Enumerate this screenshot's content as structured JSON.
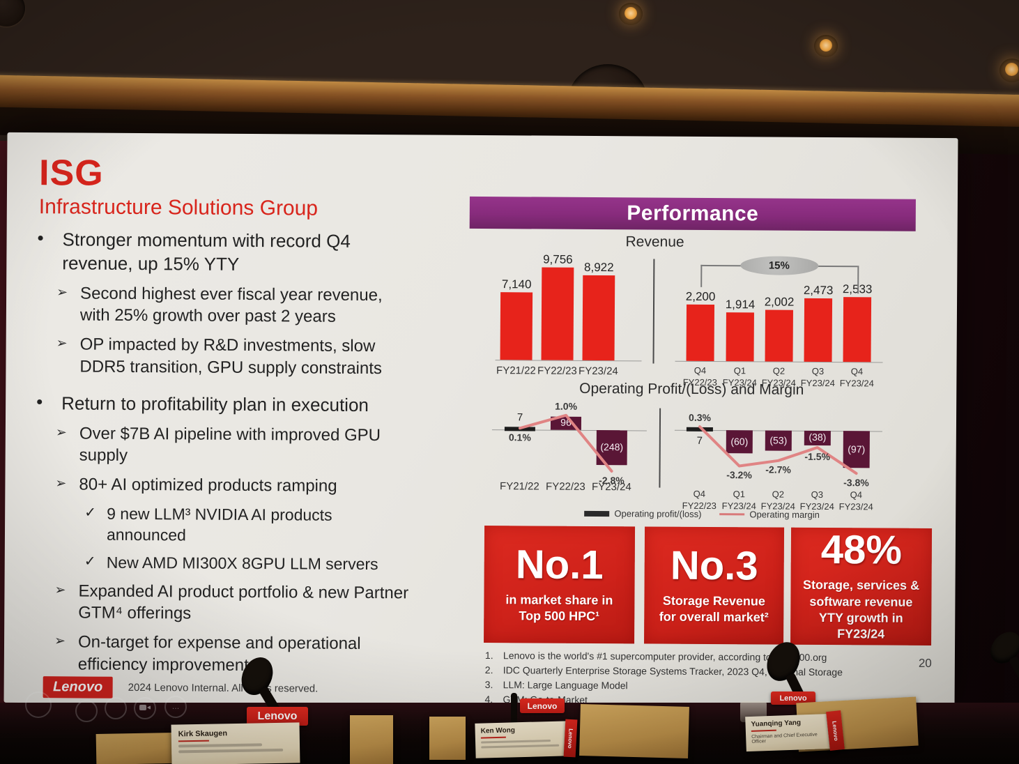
{
  "slide": {
    "title": "ISG",
    "subtitle": "Infrastructure Solutions Group",
    "bullets": [
      {
        "level": 1,
        "text": "Stronger momentum with record Q4 revenue, up 15% YTY"
      },
      {
        "level": 2,
        "text": "Second highest ever fiscal year revenue, with 25% growth over past 2 years"
      },
      {
        "level": 2,
        "text": "OP impacted by R&D investments, slow DDR5 transition, GPU supply constraints"
      },
      {
        "level": 1,
        "text": "Return to profitability plan in execution"
      },
      {
        "level": 2,
        "text": "Over $7B AI pipeline with improved GPU supply"
      },
      {
        "level": 2,
        "text": "80+ AI optimized products ramping"
      },
      {
        "level": 3,
        "text": "9 new LLM³ NVIDIA AI products announced"
      },
      {
        "level": 3,
        "text": "New AMD MI300X 8GPU LLM servers"
      },
      {
        "level": 2,
        "text": "Expanded AI product portfolio & new Partner GTM⁴ offerings"
      },
      {
        "level": 2,
        "text": "On-target for expense and operational efficiency improvement"
      }
    ],
    "footer": {
      "logo": "Lenovo",
      "text": "2024 Lenovo Internal. All rights reserved."
    },
    "page_number": "20",
    "performance": {
      "header": "Performance",
      "revenue_title": "Revenue",
      "op_title": "Operating Profit/(Loss) and Margin",
      "legend": [
        "Operating profit/(loss)",
        "Operating margin"
      ],
      "highlights": [
        {
          "big": "No.1",
          "sub": "in market share in Top 500 HPC¹"
        },
        {
          "big": "No.3",
          "sub": "Storage Revenue for overall market²"
        },
        {
          "big": "48%",
          "sub": "Storage, services & software revenue YTY growth in FY23/24"
        }
      ],
      "footnotes": [
        "Lenovo is the world's #1 supercomputer provider, according to TOP500.org",
        "IDC Quarterly Enterprise Storage Systems Tracker, 2023 Q4, External Storage",
        "LLM: Large Language Model",
        "GTM: Go-to-Market"
      ]
    }
  },
  "room": {
    "sign_label": "Lenovo",
    "name_cards": [
      {
        "name": "Kirk Skaugen"
      },
      {
        "name": "Ken Wong"
      },
      {
        "name": "Yuanqing Yang",
        "title": "Chairman and Chief Executive Officer"
      }
    ]
  },
  "colors": {
    "lenovo_red": "#d8251c",
    "bar_red": "#e7231b",
    "banner_purple": "#8c2e80",
    "op_bar_purple": "#5a1636",
    "margin_line_pink": "#e08484"
  },
  "chart_data": [
    {
      "type": "bar",
      "title": "Revenue",
      "categories": [
        "FY21/22",
        "FY22/23",
        "FY23/24"
      ],
      "values": [
        7140,
        9756,
        8922
      ]
    },
    {
      "type": "bar",
      "title": "Revenue",
      "categories": [
        "Q4 FY22/23",
        "Q1 FY23/24",
        "Q2 FY23/24",
        "Q3 FY23/24",
        "Q4 FY23/24"
      ],
      "values": [
        2200,
        1914,
        2002,
        2473,
        2533
      ],
      "annotation": "15%"
    },
    {
      "type": "bar+line",
      "title": "Operating Profit/(Loss) and Margin",
      "categories": [
        "FY21/22",
        "FY22/23",
        "FY23/24"
      ],
      "series": [
        {
          "name": "Operating profit/(loss)",
          "values": [
            7,
            96,
            -248
          ]
        },
        {
          "name": "Operating margin",
          "values_pct": [
            0.1,
            1.0,
            -2.8
          ]
        }
      ]
    },
    {
      "type": "bar+line",
      "title": "Operating Profit/(Loss) and Margin",
      "categories": [
        "Q4 FY22/23",
        "Q1 FY23/24",
        "Q2 FY23/24",
        "Q3 FY23/24",
        "Q4 FY23/24"
      ],
      "series": [
        {
          "name": "Operating profit/(loss)",
          "values": [
            7,
            -60,
            -53,
            -38,
            -97
          ]
        },
        {
          "name": "Operating margin",
          "values_pct": [
            0.3,
            -3.2,
            -2.7,
            -1.5,
            -3.8
          ]
        }
      ]
    }
  ]
}
